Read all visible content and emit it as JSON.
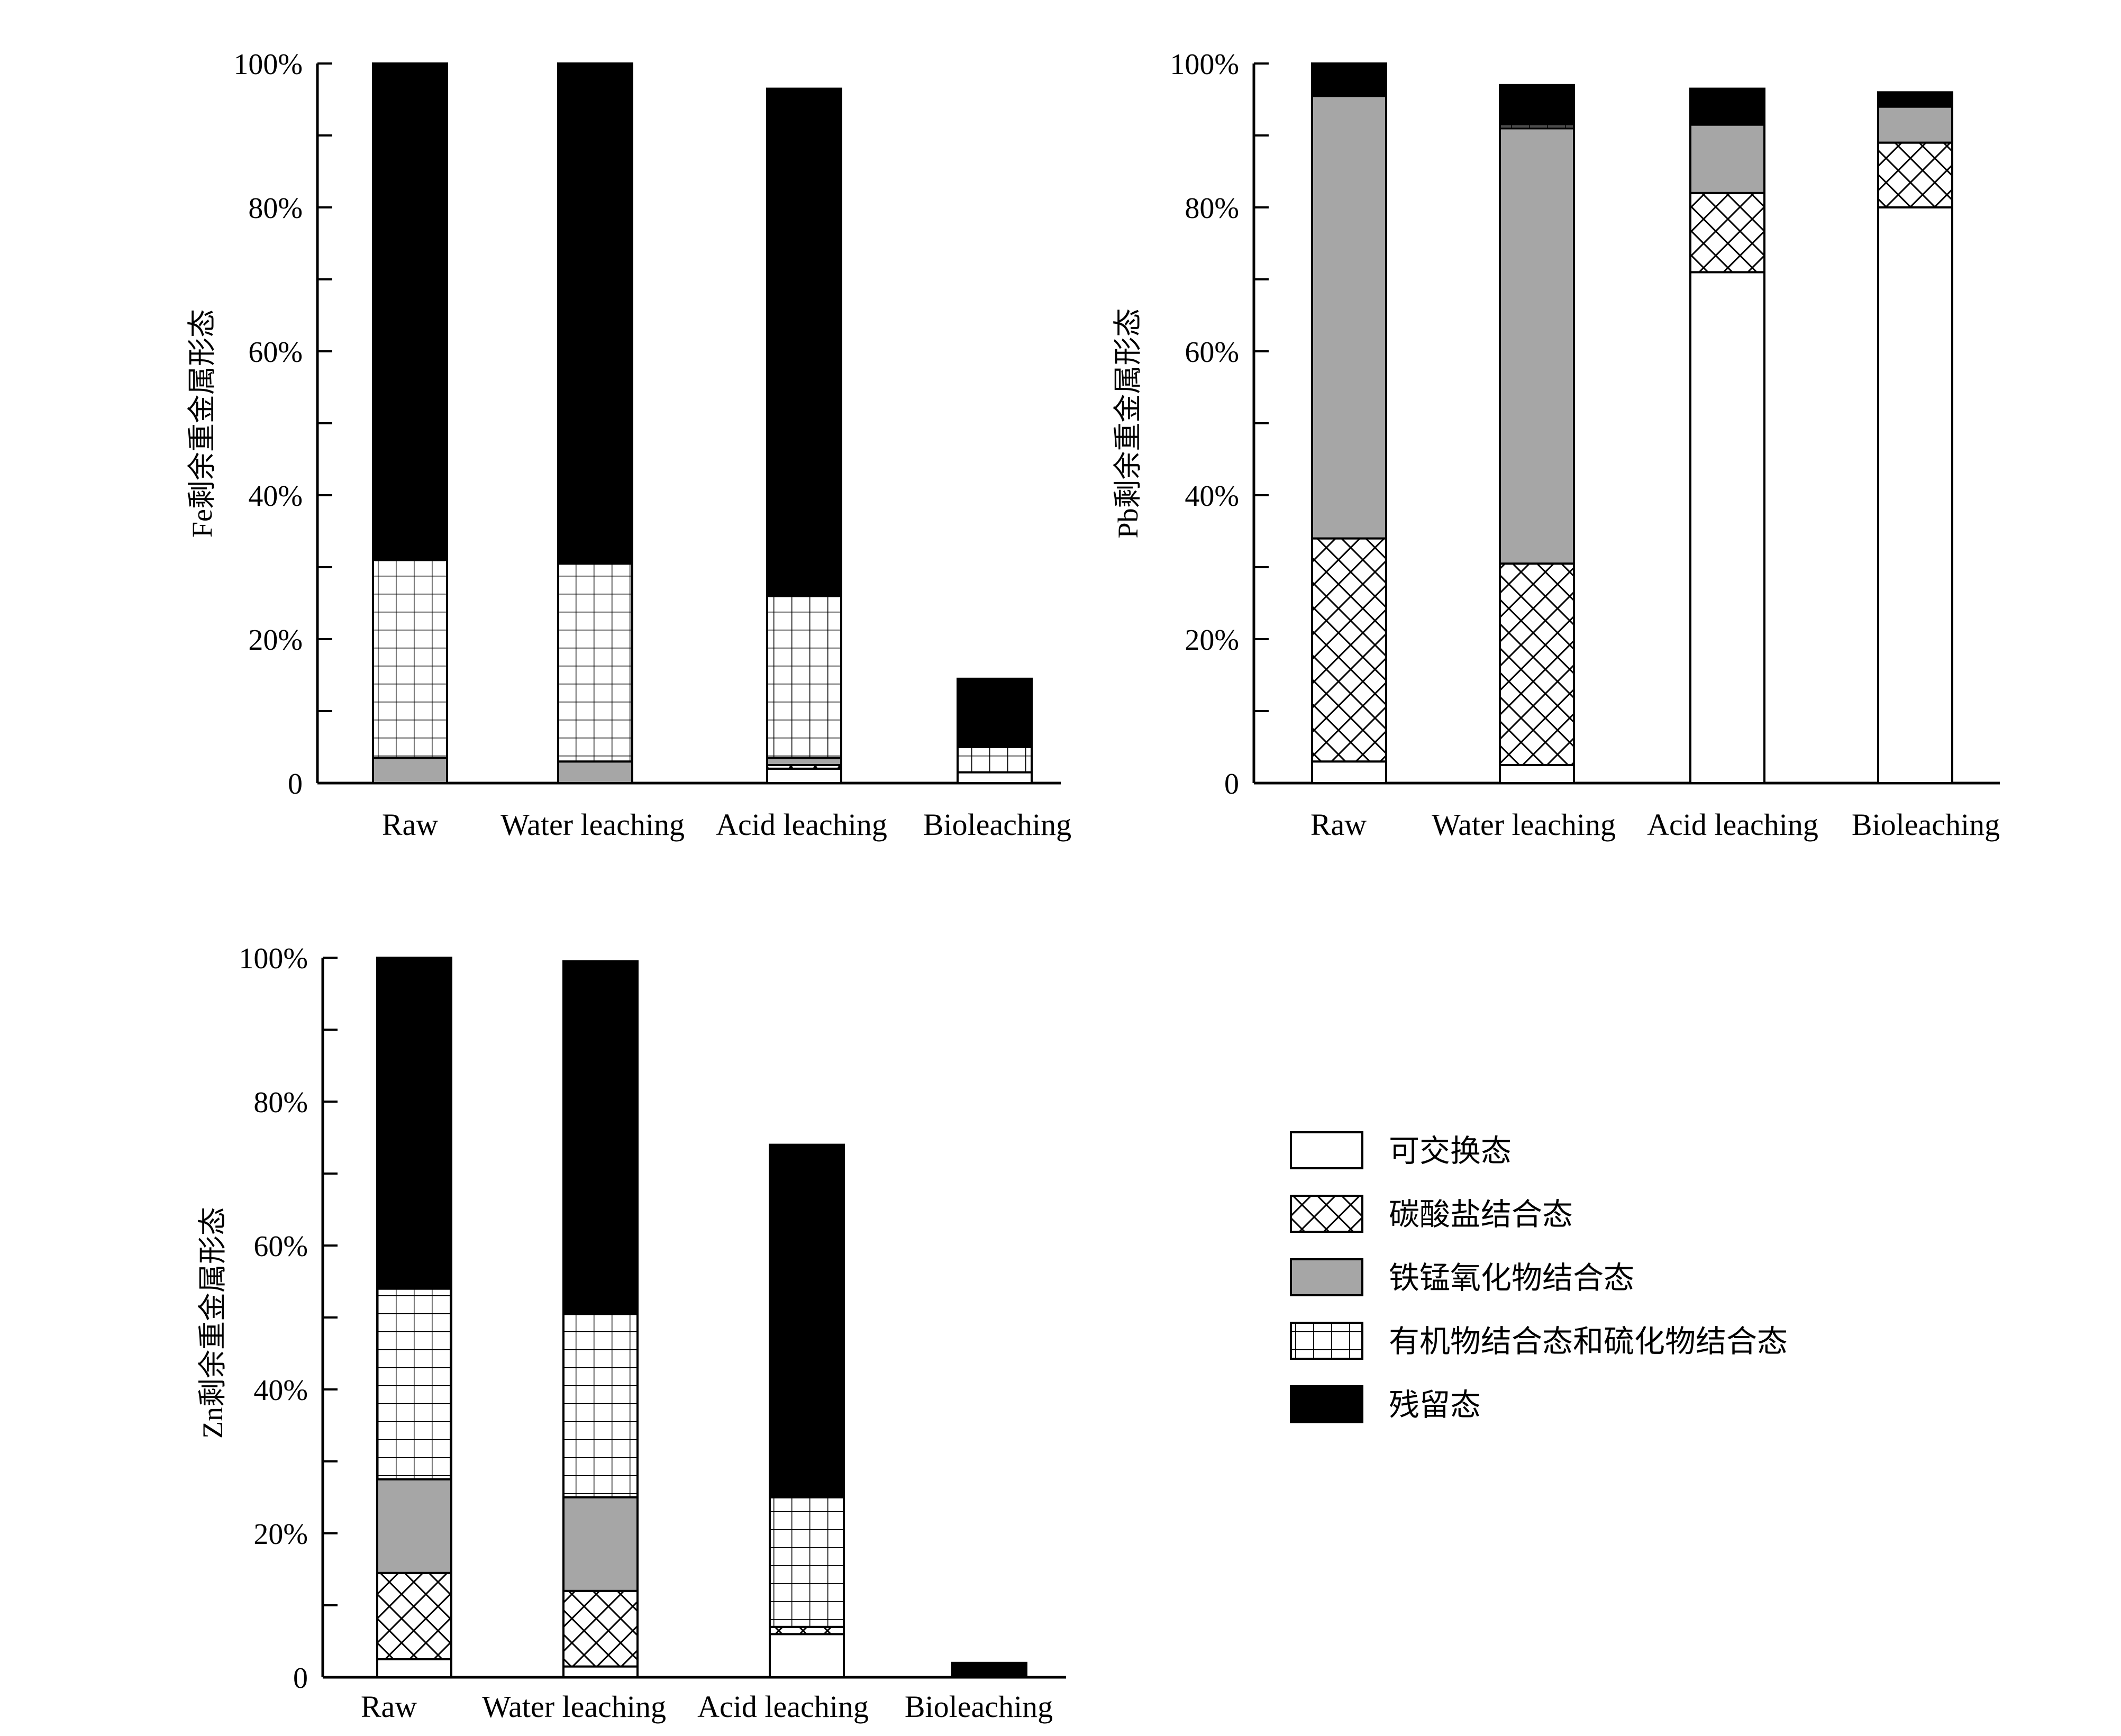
{
  "legend": [
    {
      "key": "exchangeable",
      "label": "可交换态",
      "pattern": "white"
    },
    {
      "key": "carbonate",
      "label": "碳酸盐结合态",
      "pattern": "crosshatch"
    },
    {
      "key": "femn_oxide",
      "label": "铁锰氧化物结合态",
      "pattern": "gray"
    },
    {
      "key": "organic_sulfide",
      "label": "有机物结合态和硫化物结合态",
      "pattern": "grid"
    },
    {
      "key": "residual",
      "label": "残留态",
      "pattern": "black"
    }
  ],
  "chart_data": [
    {
      "type": "bar",
      "stacked": true,
      "ylabel": "Fe剩余重金属形态",
      "ylim": [
        0,
        100
      ],
      "yticks": [
        "0",
        "20%",
        "40%",
        "60%",
        "80%",
        "100%"
      ],
      "categories": [
        "Raw",
        "Water leaching",
        "Acid leaching",
        "Bioleaching"
      ],
      "series": [
        {
          "name": "可交换态",
          "values": [
            0,
            0,
            2,
            1.5
          ]
        },
        {
          "name": "碳酸盐结合态",
          "values": [
            0,
            0,
            0.5,
            0
          ]
        },
        {
          "name": "铁锰氧化物结合态",
          "values": [
            3.5,
            3,
            1,
            0
          ]
        },
        {
          "name": "有机物结合态和硫化物结合态",
          "values": [
            27.5,
            27.5,
            22.5,
            3.5
          ]
        },
        {
          "name": "残留态",
          "values": [
            69,
            69.5,
            70.5,
            9.5
          ]
        }
      ]
    },
    {
      "type": "bar",
      "stacked": true,
      "ylabel": "Pb剩余重金属形态",
      "ylim": [
        0,
        100
      ],
      "yticks": [
        "0",
        "20%",
        "40%",
        "60%",
        "80%",
        "100%"
      ],
      "categories": [
        "Raw",
        "Water leaching",
        "Acid leaching",
        "Bioleaching"
      ],
      "series": [
        {
          "name": "可交换态",
          "values": [
            3,
            2.5,
            71,
            80
          ]
        },
        {
          "name": "碳酸盐结合态",
          "values": [
            31,
            28,
            11,
            9
          ]
        },
        {
          "name": "铁锰氧化物结合态",
          "values": [
            61.5,
            60.5,
            9.5,
            5
          ]
        },
        {
          "name": "有机物结合态和硫化物结合态",
          "values": [
            0,
            0.5,
            0,
            0
          ]
        },
        {
          "name": "残留态",
          "values": [
            4.5,
            5.5,
            5,
            2
          ]
        }
      ]
    },
    {
      "type": "bar",
      "stacked": true,
      "ylabel": "Zn剩余重金属形态",
      "ylim": [
        0,
        100
      ],
      "yticks": [
        "0",
        "20%",
        "40%",
        "60%",
        "80%",
        "100%"
      ],
      "categories": [
        "Raw",
        "Water leaching",
        "Acid leaching",
        "Bioleaching"
      ],
      "series": [
        {
          "name": "可交换态",
          "values": [
            2.5,
            1.5,
            6,
            0
          ]
        },
        {
          "name": "碳酸盐结合态",
          "values": [
            12,
            10.5,
            1,
            0
          ]
        },
        {
          "name": "铁锰氧化物结合态",
          "values": [
            13,
            13,
            0,
            0
          ]
        },
        {
          "name": "有机物结合态和硫化物结合态",
          "values": [
            26.5,
            25.5,
            18,
            0
          ]
        },
        {
          "name": "残留态",
          "values": [
            46,
            49,
            49,
            2
          ]
        }
      ]
    }
  ]
}
